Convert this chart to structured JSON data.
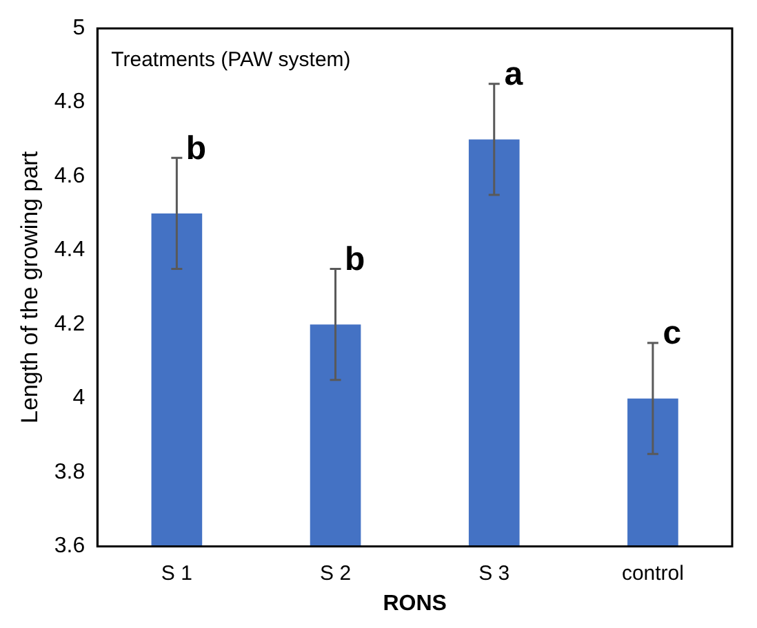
{
  "chart_data": {
    "type": "bar",
    "xlabel": "RONS",
    "ylabel": "Length of the growing part",
    "categories": [
      "S 1",
      "S 2",
      "S 3",
      "control"
    ],
    "values": [
      4.5,
      4.2,
      4.7,
      4.0
    ],
    "errors": [
      0.15,
      0.15,
      0.15,
      0.15
    ],
    "color": "#4472c4",
    "ylim": [
      3.6,
      5
    ],
    "yticks": [
      3.6,
      3.8,
      4,
      4.2,
      4.4,
      4.6,
      4.8,
      5
    ],
    "annotations": [
      "Treatments (PAW system)",
      {
        "text": "b",
        "x": "S 1",
        "y": 4.65
      },
      {
        "text": "b",
        "x": "S 2",
        "y": 4.35
      },
      {
        "text": "a",
        "x": "S 3",
        "y": 4.85
      },
      {
        "text": "c",
        "x": "control",
        "y": 4.15
      }
    ]
  }
}
